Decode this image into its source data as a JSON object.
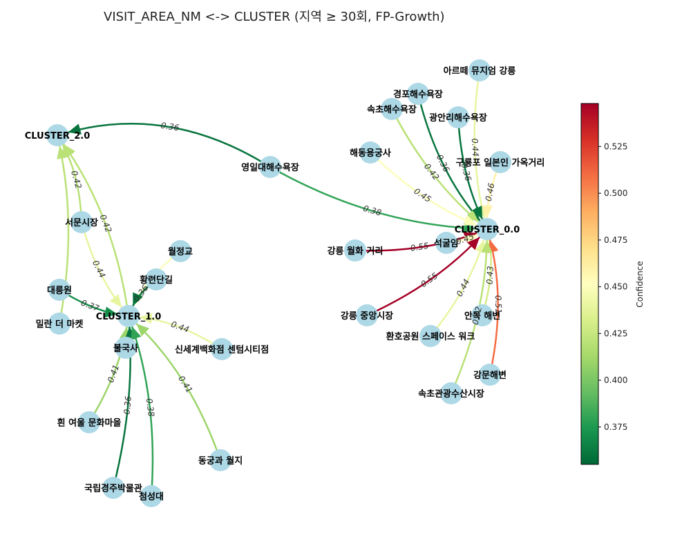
{
  "title": "VISIT_AREA_NM <-> CLUSTER  (지역 ≥ 30회, FP-Growth)",
  "colorbar": {
    "label": "Confidence",
    "min": 0.355,
    "max": 0.548,
    "ticks": [
      "0.375",
      "0.400",
      "0.425",
      "0.450",
      "0.475",
      "0.500",
      "0.525"
    ],
    "colors": [
      "#006837",
      "#1a9850",
      "#66bd63",
      "#a6d96a",
      "#d9ef8b",
      "#ffffbf",
      "#fee08b",
      "#fdae61",
      "#f46d43",
      "#d73027",
      "#a50026"
    ]
  },
  "nodes": [
    {
      "id": "c2",
      "label": "CLUSTER_2.0"
    },
    {
      "id": "c1",
      "label": "CLUSTER_1.0"
    },
    {
      "id": "c0",
      "label": "CLUSTER_0.0"
    },
    {
      "id": "yeongil",
      "label": "영일대해수욕장"
    },
    {
      "id": "seomun",
      "label": "서문시장"
    },
    {
      "id": "daereung",
      "label": "대릉원"
    },
    {
      "id": "milan",
      "label": "밀란 더 마켓"
    },
    {
      "id": "woljeong",
      "label": "월정교"
    },
    {
      "id": "hwangridan",
      "label": "황련단길"
    },
    {
      "id": "bulguksa",
      "label": "불국사"
    },
    {
      "id": "shinsegae",
      "label": "신세계백화점 센텀시티점"
    },
    {
      "id": "huinyeoul",
      "label": "흰 여울 문화마을"
    },
    {
      "id": "donggung",
      "label": "동궁과 월지"
    },
    {
      "id": "museum",
      "label": "국립경주박물관"
    },
    {
      "id": "cheomseong",
      "label": "첨성대"
    },
    {
      "id": "artemuseum",
      "label": "아르떼 뮤지엄 강릉"
    },
    {
      "id": "gyeongpo",
      "label": "경포해수욕장"
    },
    {
      "id": "sokcho",
      "label": "속초해수욕장"
    },
    {
      "id": "gwangalli",
      "label": "광안리해수욕장"
    },
    {
      "id": "haedong",
      "label": "해동용궁사"
    },
    {
      "id": "guryongpo",
      "label": "구룡포 일본인 가옥거리"
    },
    {
      "id": "wolhwa",
      "label": "강릉 월화 거리"
    },
    {
      "id": "seokguram",
      "label": "석굴암"
    },
    {
      "id": "jungang",
      "label": "강릉 중앙시장"
    },
    {
      "id": "anmok",
      "label": "안목 해변"
    },
    {
      "id": "hwanho",
      "label": "환호공원 스페이스 워크"
    },
    {
      "id": "gangmun",
      "label": "강문해변"
    },
    {
      "id": "sokchomarket",
      "label": "속초관광수산시장"
    }
  ],
  "edges": [
    {
      "from": "yeongil",
      "to": "c2",
      "confidence": 0.36,
      "label": "0.36"
    },
    {
      "from": "yeongil",
      "to": "c0",
      "confidence": 0.38,
      "label": "0.38"
    },
    {
      "from": "seomun",
      "to": "c2",
      "confidence": 0.42,
      "label": "0.42"
    },
    {
      "from": "seomun",
      "to": "c1",
      "confidence": 0.44,
      "label": "0.44"
    },
    {
      "from": "c1",
      "to": "c2",
      "confidence": 0.42,
      "label": "0.42"
    },
    {
      "from": "daereung",
      "to": "c1",
      "confidence": 0.37,
      "label": "0.37"
    },
    {
      "from": "milan",
      "to": "c2",
      "confidence": 0.42,
      "label": ""
    },
    {
      "from": "woljeong",
      "to": "c1",
      "confidence": 0.45,
      "label": ""
    },
    {
      "from": "hwangridan",
      "to": "c1",
      "confidence": 0.36,
      "label": "0.36"
    },
    {
      "from": "shinsegae",
      "to": "c1",
      "confidence": 0.44,
      "label": "0.44"
    },
    {
      "from": "bulguksa",
      "to": "c1",
      "confidence": 0.38,
      "label": ""
    },
    {
      "from": "huinyeoul",
      "to": "c1",
      "confidence": 0.41,
      "label": "0.41"
    },
    {
      "from": "donggung",
      "to": "c1",
      "confidence": 0.41,
      "label": "0.41"
    },
    {
      "from": "museum",
      "to": "c1",
      "confidence": 0.36,
      "label": "0.36"
    },
    {
      "from": "cheomseong",
      "to": "c1",
      "confidence": 0.38,
      "label": "0.38"
    },
    {
      "from": "artemuseum",
      "to": "c0",
      "confidence": 0.44,
      "label": "0.44"
    },
    {
      "from": "gyeongpo",
      "to": "c0",
      "confidence": 0.36,
      "label": "0.36"
    },
    {
      "from": "sokcho",
      "to": "c0",
      "confidence": 0.42,
      "label": "0.42"
    },
    {
      "from": "gwangalli",
      "to": "c0",
      "confidence": 0.36,
      "label": "0.36"
    },
    {
      "from": "haedong",
      "to": "c0",
      "confidence": 0.45,
      "label": "0.45"
    },
    {
      "from": "guryongpo",
      "to": "c0",
      "confidence": 0.46,
      "label": "0.46"
    },
    {
      "from": "wolhwa",
      "to": "c0",
      "confidence": 0.55,
      "label": "0.55"
    },
    {
      "from": "seokguram",
      "to": "c0",
      "confidence": 0.45,
      "label": "0.45"
    },
    {
      "from": "jungang",
      "to": "c0",
      "confidence": 0.55,
      "label": "0.55"
    },
    {
      "from": "anmok",
      "to": "c0",
      "confidence": 0.43,
      "label": "0.43"
    },
    {
      "from": "hwanho",
      "to": "c0",
      "confidence": 0.44,
      "label": "0.44"
    },
    {
      "from": "gangmun",
      "to": "c0",
      "confidence": 0.51,
      "label": "0.51"
    },
    {
      "from": "sokchomarket",
      "to": "c0",
      "confidence": 0.42,
      "label": "0.42"
    }
  ]
}
